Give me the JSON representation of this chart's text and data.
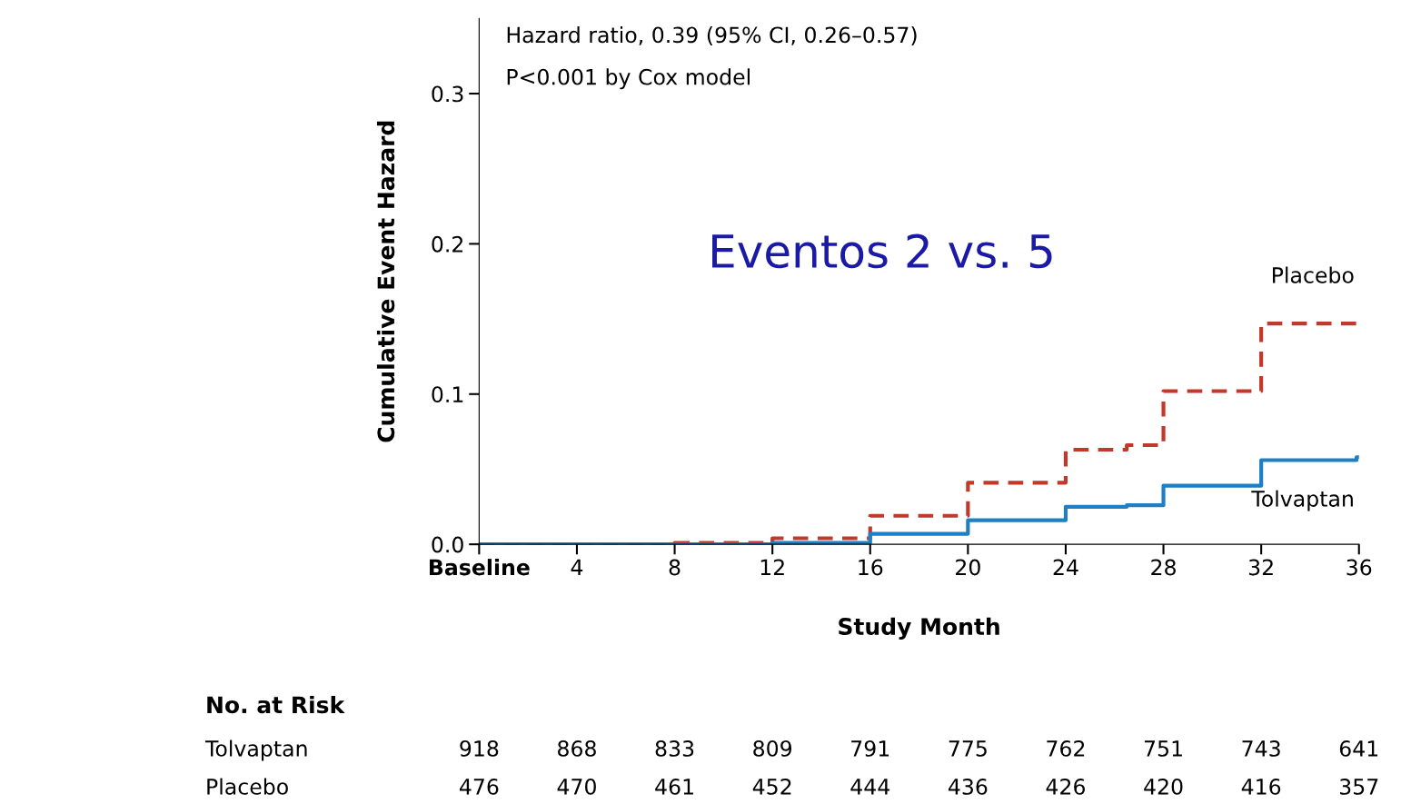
{
  "chart_data": {
    "type": "step",
    "xlabel": "Study Month",
    "ylabel": "Cumulative Event Hazard",
    "xlim": [
      0,
      36
    ],
    "ylim": [
      0,
      0.35
    ],
    "xticks": [
      {
        "value": 0,
        "label": "Baseline"
      },
      4,
      8,
      12,
      16,
      20,
      24,
      28,
      32,
      36
    ],
    "yticks": [
      {
        "value": 0,
        "label": "0.0"
      },
      0.1,
      0.2,
      0.3
    ],
    "series": [
      {
        "name": "Placebo",
        "color": "#c0392b",
        "line_style": "dashed",
        "x": [
          0,
          8,
          12,
          16,
          20,
          24,
          26.5,
          28,
          32,
          35.9
        ],
        "values": [
          0,
          0.001,
          0.004,
          0.019,
          0.041,
          0.063,
          0.066,
          0.102,
          0.147,
          0.151
        ]
      },
      {
        "name": "Tolvaptan",
        "color": "#1f7fc4",
        "line_style": "solid",
        "x": [
          0,
          12,
          16,
          20,
          24,
          26.5,
          28,
          32,
          35.9
        ],
        "values": [
          0,
          0.001,
          0.007,
          0.016,
          0.025,
          0.026,
          0.039,
          0.056,
          0.058
        ]
      }
    ],
    "legend": false,
    "grid": false,
    "annotations": [
      "Hazard ratio, 0.39 (95% CI, 0.26–0.57)",
      "P<0.001 by Cox model",
      "Eventos 2 vs. 5",
      "No. at Risk",
      "Tolvaptan",
      "918",
      "868",
      "833",
      "809",
      "791",
      "775",
      "762",
      "751",
      "743",
      "641",
      "Placebo",
      "476",
      "470",
      "461",
      "452",
      "444",
      "436",
      "426",
      "420",
      "416",
      "357"
    ]
  }
}
